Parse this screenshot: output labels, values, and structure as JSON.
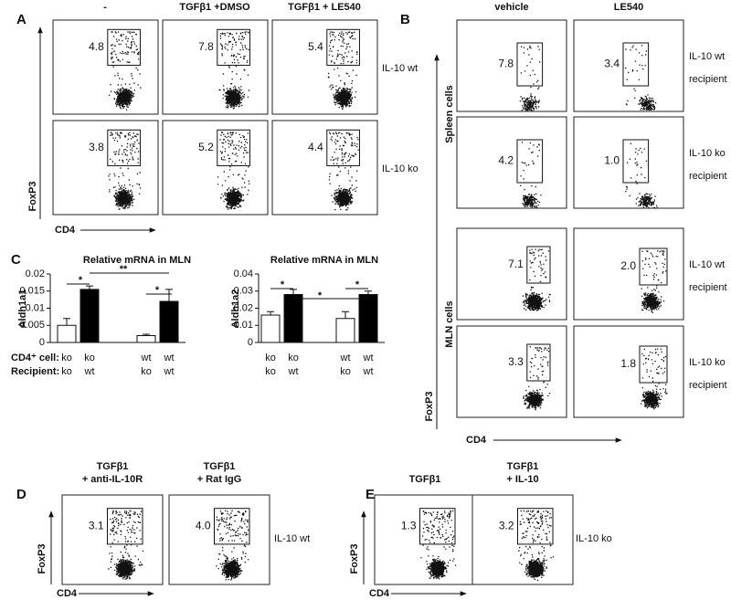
{
  "panel_a": {
    "label": "A",
    "columns": [
      "-",
      "TGFβ1 +DMSO",
      "TGFβ1 + LE540"
    ],
    "rows": [
      "IL-10 wt",
      "IL-10 ko"
    ],
    "gates": [
      [
        "4.8",
        "7.8",
        "5.4"
      ],
      [
        "3.8",
        "5.2",
        "4.4"
      ]
    ],
    "y_axis": "FoxP3",
    "x_axis": "CD4"
  },
  "panel_b": {
    "label": "B",
    "columns": [
      "vehicle",
      "LE540"
    ],
    "row_groups": [
      "Spleen cells",
      "MLN cells"
    ],
    "rows": [
      [
        "IL-10 wt",
        "recipient"
      ],
      [
        "IL-10 ko",
        "recipient"
      ],
      [
        "IL-10 wt",
        "recipient"
      ],
      [
        "IL-10 ko",
        "recipient"
      ]
    ],
    "gates": [
      [
        "7.8",
        "3.4"
      ],
      [
        "4.2",
        "1.0"
      ],
      [
        "7.1",
        "2.0"
      ],
      [
        "3.3",
        "1.8"
      ]
    ],
    "y_axis": "FoxP3",
    "x_axis": "CD4"
  },
  "panel_c": {
    "label": "C",
    "row_labels": [
      "CD4⁺ cell:",
      "Recipient:"
    ]
  },
  "chart_data": [
    {
      "type": "bar",
      "title": "Relative mRNA in MLN",
      "ylabel": "Aldh1a1",
      "categories": [
        "ko",
        "ko",
        "wt",
        "wt"
      ],
      "recipients": [
        "ko",
        "wt",
        "ko",
        "wt"
      ],
      "values": [
        0.005,
        0.0155,
        0.002,
        0.012
      ],
      "errors": [
        0.002,
        0.001,
        0.0004,
        0.0035
      ],
      "colors": [
        "#ffffff",
        "#000000",
        "#ffffff",
        "#000000"
      ],
      "ylim": [
        0,
        0.02
      ],
      "yticks": [
        0,
        0.005,
        0.01,
        0.015,
        0.02
      ],
      "annotations": [
        "*",
        "**",
        "*"
      ]
    },
    {
      "type": "bar",
      "title": "Relative mRNA in MLN",
      "ylabel": "Aldh1a2",
      "categories": [
        "ko",
        "ko",
        "wt",
        "wt"
      ],
      "recipients": [
        "ko",
        "wt",
        "ko",
        "wt"
      ],
      "values": [
        0.016,
        0.028,
        0.014,
        0.028
      ],
      "errors": [
        0.002,
        0.003,
        0.004,
        0.002
      ],
      "colors": [
        "#ffffff",
        "#000000",
        "#ffffff",
        "#000000"
      ],
      "ylim": [
        0,
        0.04
      ],
      "yticks": [
        0,
        0.01,
        0.02,
        0.03,
        0.04
      ],
      "annotations": [
        "*",
        "*",
        "*"
      ]
    }
  ],
  "panel_d": {
    "label": "D",
    "columns": [
      [
        "TGFβ1",
        "+ anti-IL-10R"
      ],
      [
        "TGFβ1",
        "+ Rat IgG"
      ]
    ],
    "row": "IL-10 wt",
    "gates": [
      "3.1",
      "4.0"
    ],
    "y_axis": "FoxP3",
    "x_axis": "CD4"
  },
  "panel_e": {
    "label": "E",
    "columns": [
      [
        "TGFβ1"
      ],
      [
        "TGFβ1",
        "+ IL-10"
      ]
    ],
    "row": "IL-10 ko",
    "gates": [
      "1.3",
      "3.2"
    ],
    "y_axis": "FoxP3",
    "x_axis": "CD4"
  }
}
